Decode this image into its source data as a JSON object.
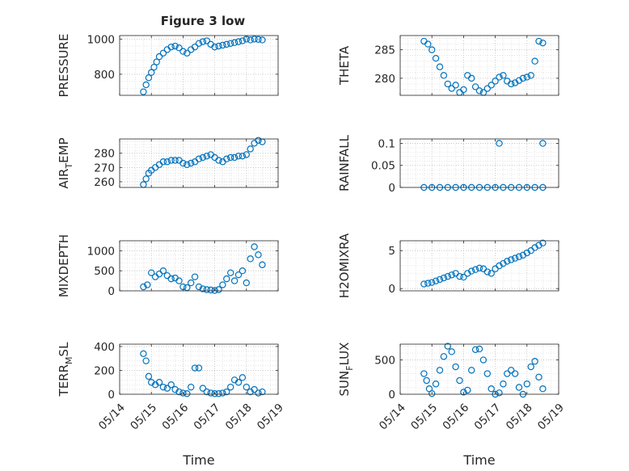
{
  "figure": {
    "title": "Figure 3 low",
    "marker_color": "#0072BD"
  },
  "chart_data": [
    {
      "type": "scatter",
      "id": "pressure",
      "title": "Figure 3 low",
      "ylabel": "PRESSURE",
      "xlabel": "",
      "xlim": [
        "05/14",
        "05/19"
      ],
      "ylim": [
        680,
        1020
      ],
      "yticks": [
        800,
        1000
      ],
      "xticks": [],
      "grid": true,
      "x": [
        "05/14 18:00",
        "05/14 20:00",
        "05/14 22:00",
        "05/15 00:00",
        "05/15 02:00",
        "05/15 04:00",
        "05/15 06:00",
        "05/15 09:00",
        "05/15 12:00",
        "05/15 15:00",
        "05/15 18:00",
        "05/15 21:00",
        "05/16 00:00",
        "05/16 03:00",
        "05/16 06:00",
        "05/16 09:00",
        "05/16 12:00",
        "05/16 15:00",
        "05/16 18:00",
        "05/16 21:00",
        "05/17 00:00",
        "05/17 03:00",
        "05/17 06:00",
        "05/17 09:00",
        "05/17 12:00",
        "05/17 15:00",
        "05/17 18:00",
        "05/17 21:00",
        "05/18 00:00",
        "05/18 03:00",
        "05/18 06:00",
        "05/18 09:00",
        "05/18 12:00"
      ],
      "y": [
        700,
        740,
        780,
        810,
        840,
        870,
        900,
        920,
        940,
        955,
        960,
        950,
        930,
        920,
        940,
        955,
        975,
        985,
        990,
        970,
        955,
        960,
        965,
        970,
        975,
        980,
        985,
        990,
        1000,
        995,
        1000,
        998,
        995
      ]
    },
    {
      "type": "scatter",
      "id": "theta",
      "ylabel": "THETA",
      "xlabel": "",
      "xlim": [
        "05/14",
        "05/19"
      ],
      "ylim": [
        277,
        287.5
      ],
      "yticks": [
        280,
        285
      ],
      "xticks": [],
      "grid": true,
      "x": [
        "05/14 18:00",
        "05/14 21:00",
        "05/15 00:00",
        "05/15 03:00",
        "05/15 06:00",
        "05/15 09:00",
        "05/15 12:00",
        "05/15 15:00",
        "05/15 18:00",
        "05/15 21:00",
        "05/16 00:00",
        "05/16 03:00",
        "05/16 06:00",
        "05/16 09:00",
        "05/16 12:00",
        "05/16 15:00",
        "05/16 18:00",
        "05/16 21:00",
        "05/17 00:00",
        "05/17 03:00",
        "05/17 06:00",
        "05/17 09:00",
        "05/17 12:00",
        "05/17 15:00",
        "05/17 18:00",
        "05/17 21:00",
        "05/18 00:00",
        "05/18 03:00",
        "05/18 06:00",
        "05/18 09:00",
        "05/18 12:00"
      ],
      "y": [
        286.5,
        286,
        285,
        283.5,
        282,
        280.5,
        279,
        278.2,
        278.8,
        277.5,
        278,
        280.5,
        280,
        278.5,
        277.8,
        277.5,
        278.2,
        278.8,
        279.5,
        280.2,
        280.5,
        279.5,
        279,
        279.2,
        279.6,
        280,
        280.2,
        280.5,
        283,
        286.5,
        286.2
      ]
    },
    {
      "type": "scatter",
      "id": "air_temp",
      "ylabel": "AIR_TEMP",
      "xlabel": "",
      "xlim": [
        "05/14",
        "05/19"
      ],
      "ylim": [
        256,
        290
      ],
      "yticks": [
        260,
        270,
        280
      ],
      "xticks": [],
      "grid": true,
      "x": [
        "05/14 18:00",
        "05/14 20:00",
        "05/14 22:00",
        "05/15 00:00",
        "05/15 03:00",
        "05/15 06:00",
        "05/15 09:00",
        "05/15 12:00",
        "05/15 15:00",
        "05/15 18:00",
        "05/15 21:00",
        "05/16 00:00",
        "05/16 03:00",
        "05/16 06:00",
        "05/16 09:00",
        "05/16 12:00",
        "05/16 15:00",
        "05/16 18:00",
        "05/16 21:00",
        "05/17 00:00",
        "05/17 03:00",
        "05/17 06:00",
        "05/17 09:00",
        "05/17 12:00",
        "05/17 15:00",
        "05/17 18:00",
        "05/17 21:00",
        "05/18 00:00",
        "05/18 03:00",
        "05/18 06:00",
        "05/18 09:00",
        "05/18 12:00"
      ],
      "y": [
        258,
        262,
        266,
        268,
        270,
        272,
        274,
        274,
        275,
        275,
        275,
        273,
        272,
        273,
        274,
        276,
        277,
        278,
        279,
        277,
        275,
        274,
        276,
        277,
        277,
        278,
        278,
        279,
        283,
        287,
        289,
        288
      ]
    },
    {
      "type": "scatter",
      "id": "rainfall",
      "ylabel": "RAINFALL",
      "xlabel": "",
      "xlim": [
        "05/14",
        "05/19"
      ],
      "ylim": [
        0,
        0.11
      ],
      "yticks": [
        0,
        0.05,
        0.1
      ],
      "ytick_labels": [
        "0",
        "0.05",
        "0.1"
      ],
      "xticks": [],
      "grid": true,
      "x": [
        "05/14 18:00",
        "05/15 00:00",
        "05/15 06:00",
        "05/15 12:00",
        "05/15 18:00",
        "05/16 00:00",
        "05/16 06:00",
        "05/16 12:00",
        "05/16 18:00",
        "05/17 00:00",
        "05/17 06:00",
        "05/17 12:00",
        "05/17 18:00",
        "05/18 00:00",
        "05/18 06:00",
        "05/18 12:00",
        "05/17 03:00",
        "05/18 12:00"
      ],
      "y": [
        0,
        0,
        0,
        0,
        0,
        0,
        0,
        0,
        0,
        0,
        0,
        0,
        0,
        0,
        0,
        0,
        0.1,
        0.1
      ]
    },
    {
      "type": "scatter",
      "id": "mixdepth",
      "ylabel": "MIXDEPTH",
      "xlabel": "",
      "xlim": [
        "05/14",
        "05/19"
      ],
      "ylim": [
        0,
        1250
      ],
      "yticks": [
        0,
        500,
        1000
      ],
      "xticks": [],
      "grid": true,
      "x": [
        "05/14 18:00",
        "05/14 21:00",
        "05/15 00:00",
        "05/15 03:00",
        "05/15 06:00",
        "05/15 09:00",
        "05/15 12:00",
        "05/15 15:00",
        "05/15 18:00",
        "05/15 21:00",
        "05/16 00:00",
        "05/16 03:00",
        "05/16 06:00",
        "05/16 09:00",
        "05/16 12:00",
        "05/16 15:00",
        "05/16 18:00",
        "05/16 21:00",
        "05/17 00:00",
        "05/17 03:00",
        "05/17 06:00",
        "05/17 09:00",
        "05/17 12:00",
        "05/17 15:00",
        "05/17 18:00",
        "05/17 21:00",
        "05/18 00:00",
        "05/18 03:00",
        "05/18 06:00",
        "05/18 09:00",
        "05/18 12:00"
      ],
      "y": [
        100,
        150,
        450,
        350,
        420,
        500,
        380,
        300,
        320,
        250,
        100,
        80,
        200,
        350,
        100,
        50,
        30,
        20,
        10,
        30,
        150,
        300,
        450,
        250,
        400,
        500,
        200,
        800,
        1100,
        900,
        650
      ]
    },
    {
      "type": "scatter",
      "id": "h2omixra",
      "ylabel": "H2OMIXRA",
      "xlabel": "",
      "xlim": [
        "05/14",
        "05/19"
      ],
      "ylim": [
        -0.3,
        6.3
      ],
      "yticks": [
        0,
        5
      ],
      "xticks": [],
      "grid": true,
      "x": [
        "05/14 18:00",
        "05/14 21:00",
        "05/15 00:00",
        "05/15 03:00",
        "05/15 06:00",
        "05/15 09:00",
        "05/15 12:00",
        "05/15 15:00",
        "05/15 18:00",
        "05/15 21:00",
        "05/16 00:00",
        "05/16 03:00",
        "05/16 06:00",
        "05/16 09:00",
        "05/16 12:00",
        "05/16 15:00",
        "05/16 18:00",
        "05/16 21:00",
        "05/17 00:00",
        "05/17 03:00",
        "05/17 06:00",
        "05/17 09:00",
        "05/17 12:00",
        "05/17 15:00",
        "05/17 18:00",
        "05/17 21:00",
        "05/18 00:00",
        "05/18 03:00",
        "05/18 06:00",
        "05/18 09:00",
        "05/18 12:00"
      ],
      "y": [
        0.6,
        0.7,
        0.8,
        1.0,
        1.2,
        1.4,
        1.6,
        1.8,
        2.0,
        1.6,
        1.5,
        2.0,
        2.3,
        2.5,
        2.7,
        2.6,
        2.2,
        2.0,
        2.6,
        3.0,
        3.3,
        3.6,
        3.8,
        4.0,
        4.2,
        4.4,
        4.7,
        5.0,
        5.4,
        5.7,
        6.0
      ]
    },
    {
      "type": "scatter",
      "id": "terr_msl",
      "ylabel": "TERR_MSL",
      "xlabel": "Time",
      "xlim": [
        "05/14",
        "05/19"
      ],
      "ylim": [
        0,
        420
      ],
      "yticks": [
        0,
        200,
        400
      ],
      "xticks": [
        "05/14",
        "05/15",
        "05/16",
        "05/17",
        "05/18",
        "05/19"
      ],
      "grid": true,
      "x": [
        "05/14 18:00",
        "05/14 20:00",
        "05/14 22:00",
        "05/15 00:00",
        "05/15 03:00",
        "05/15 06:00",
        "05/15 09:00",
        "05/15 12:00",
        "05/15 15:00",
        "05/15 18:00",
        "05/15 21:00",
        "05/16 00:00",
        "05/16 03:00",
        "05/16 06:00",
        "05/16 09:00",
        "05/16 12:00",
        "05/16 15:00",
        "05/16 18:00",
        "05/16 21:00",
        "05/17 00:00",
        "05/17 03:00",
        "05/17 06:00",
        "05/17 09:00",
        "05/17 12:00",
        "05/17 15:00",
        "05/17 18:00",
        "05/17 21:00",
        "05/18 00:00",
        "05/18 03:00",
        "05/18 06:00",
        "05/18 09:00",
        "05/18 12:00"
      ],
      "y": [
        340,
        280,
        150,
        100,
        80,
        100,
        60,
        50,
        80,
        40,
        20,
        10,
        5,
        60,
        220,
        220,
        50,
        20,
        10,
        5,
        5,
        10,
        20,
        60,
        120,
        100,
        140,
        60,
        20,
        40,
        10,
        20
      ]
    },
    {
      "type": "scatter",
      "id": "sun_flux",
      "ylabel": "SUN_FLUX",
      "xlabel": "Time",
      "xlim": [
        "05/14",
        "05/19"
      ],
      "ylim": [
        0,
        730
      ],
      "yticks": [
        0,
        500
      ],
      "xticks": [
        "05/14",
        "05/15",
        "05/16",
        "05/17",
        "05/18",
        "05/19"
      ],
      "grid": true,
      "x": [
        "05/14 18:00",
        "05/14 20:00",
        "05/14 22:00",
        "05/15 00:00",
        "05/15 03:00",
        "05/15 06:00",
        "05/15 09:00",
        "05/15 12:00",
        "05/15 15:00",
        "05/15 18:00",
        "05/15 21:00",
        "05/16 00:00",
        "05/16 03:00",
        "05/16 06:00",
        "05/16 09:00",
        "05/16 12:00",
        "05/16 15:00",
        "05/16 18:00",
        "05/16 21:00",
        "05/17 00:00",
        "05/17 03:00",
        "05/17 06:00",
        "05/17 09:00",
        "05/17 12:00",
        "05/17 15:00",
        "05/17 18:00",
        "05/17 21:00",
        "05/18 00:00",
        "05/18 03:00",
        "05/18 06:00",
        "05/18 09:00",
        "05/18 12:00"
      ],
      "y": [
        300,
        200,
        80,
        10,
        150,
        350,
        550,
        700,
        620,
        400,
        200,
        30,
        60,
        350,
        650,
        660,
        500,
        300,
        80,
        0,
        20,
        150,
        300,
        350,
        300,
        100,
        0,
        150,
        400,
        480,
        250,
        80
      ]
    }
  ]
}
